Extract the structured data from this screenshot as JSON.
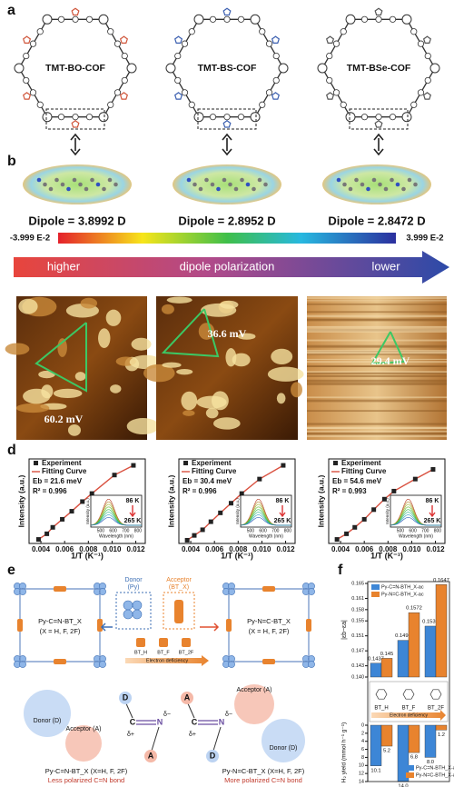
{
  "panel_a": {
    "label": "a",
    "cofs": [
      "TMT-BO-COF",
      "TMT-BS-COF",
      "TMT-BSe-COF"
    ]
  },
  "panel_b": {
    "label": "b",
    "dipoles": [
      "Dipole = 3.8992 D",
      "Dipole = 2.8952 D",
      "Dipole = 2.8472 D"
    ],
    "colorbar": [
      "-3.999 E-2",
      "3.999 E-2"
    ],
    "arrow": [
      "higher",
      "dipole polarization",
      "lower"
    ]
  },
  "panel_c": {
    "label": "c",
    "potentials": [
      "60.2 mV",
      "36.6 mV",
      "29.4 mV"
    ]
  },
  "panel_d": {
    "label": "d",
    "charts": [
      {
        "type": "scatter",
        "y_label": "Intensity (a.u.)",
        "x_label": "1/T (K⁻¹)",
        "legend": [
          "Experiment",
          "Fitting Curve"
        ],
        "eb": "Eb = 21.6 meV",
        "r2": "R² = 0.996",
        "x": [
          0.0038,
          0.0045,
          0.005,
          0.0058,
          0.0066,
          0.0075,
          0.0083,
          0.0102,
          0.0118
        ],
        "values": [
          0.05,
          0.12,
          0.2,
          0.3,
          0.4,
          0.52,
          0.62,
          0.85,
          0.97
        ],
        "xlim": [
          0.003,
          0.0128
        ],
        "ylim": [
          0,
          1.05
        ],
        "xticks": [
          0.004,
          0.006,
          0.008,
          {
            "value": 0.01,
            "label": "0.010"
          },
          0.012
        ],
        "color": "#222222",
        "fit_color": "#d9503f",
        "inset": {
          "x_label": "Wavelength (nm)",
          "y_label": "Intensity (a.u.)",
          "xticks": [
            500,
            600,
            700,
            800
          ],
          "xlim": [
            420,
            830
          ],
          "top": "86 K",
          "bottom": "265 K"
        }
      },
      {
        "type": "scatter",
        "y_label": "Intensity (a.u.)",
        "x_label": "1/T (K⁻¹)",
        "legend": [
          "Experiment",
          "Fitting Curve"
        ],
        "eb": "Eb = 30.4 meV",
        "r2": "R² = 0.996",
        "x": [
          0.0037,
          0.0043,
          0.005,
          0.0057,
          0.0065,
          0.0074,
          0.0083,
          0.0098,
          0.0118
        ],
        "values": [
          0.04,
          0.1,
          0.17,
          0.27,
          0.38,
          0.5,
          0.62,
          0.8,
          0.97
        ],
        "xlim": [
          0.003,
          0.0128
        ],
        "ylim": [
          0,
          1.05
        ],
        "xticks": [
          0.004,
          0.006,
          0.008,
          {
            "value": 0.01,
            "label": "0.010"
          },
          0.012
        ],
        "color": "#222222",
        "fit_color": "#d9503f",
        "inset": {
          "x_label": "Wavelength (nm)",
          "y_label": "Intensity (a.u.)",
          "xticks": [
            500,
            600,
            700,
            800
          ],
          "xlim": [
            420,
            830
          ],
          "top": "86 K",
          "bottom": "265 K"
        }
      },
      {
        "type": "scatter",
        "y_label": "Intensity (a.u.)",
        "x_label": "1/T (K⁻¹)",
        "legend": [
          "Experiment",
          "Fitting Curve"
        ],
        "eb": "Eb = 54.6 meV",
        "r2": "R² = 0.993",
        "x": [
          0.0037,
          0.0045,
          0.0052,
          0.006,
          0.0068,
          0.0077,
          0.0085,
          0.0103,
          0.0118
        ],
        "values": [
          0.05,
          0.12,
          0.2,
          0.3,
          0.42,
          0.55,
          0.65,
          0.8,
          0.92
        ],
        "xlim": [
          0.003,
          0.0128
        ],
        "ylim": [
          0,
          1.05
        ],
        "xticks": [
          0.004,
          0.006,
          0.008,
          {
            "value": 0.01,
            "label": "0.010"
          },
          0.012
        ],
        "color": "#222222",
        "fit_color": "#d9503f",
        "inset": {
          "x_label": "Wavelength (nm)",
          "y_label": "Intensity (a.u.)",
          "xticks": [
            500,
            600,
            700,
            800
          ],
          "xlim": [
            420,
            830
          ],
          "top": "86 K",
          "bottom": "265 K"
        }
      }
    ]
  },
  "panel_e": {
    "label": "e",
    "left": {
      "name": "Py-C=N-BT_X",
      "note": "(X = H, F, 2F)"
    },
    "right": {
      "name": "Py-N=C-BT_X",
      "note": "(X = H, F, 2F)"
    },
    "donor": [
      "Donor",
      "(Py)"
    ],
    "acceptor": [
      "Acceptor",
      "(BT_X)"
    ],
    "units": [
      "BT_H",
      "BT_F",
      "BT_2F"
    ],
    "deficiency": "Electron deficiency",
    "bottom_left": {
      "donor": "Donor (D)",
      "acceptor": "Acceptor (A)",
      "atoms": [
        "D",
        "C",
        "N",
        "A"
      ],
      "charges": [
        "δ+",
        "δ−"
      ],
      "caption": "Py-C=N-BT_X (X=H, F, 2F)",
      "note": "Less polarized C=N bond"
    },
    "bottom_right": {
      "donor": "Donor (D)",
      "acceptor": "Acceptor (A)",
      "atoms": [
        "A",
        "C",
        "N",
        "D"
      ],
      "charges": [
        "δ+",
        "δ−"
      ],
      "caption": "Py-N=C-BT_X (X=H, F, 2F)",
      "note": "More polarized C=N bond"
    }
  },
  "panel_f": {
    "label": "f",
    "deficiency": "Electron deficiency",
    "top": {
      "type": "bar",
      "y_label": "|εb−εa|",
      "categories": [
        "BT_H",
        "BT_F",
        "BT_2F"
      ],
      "series": [
        {
          "name": "Py-C=N-BTH_X-ac",
          "color": "#3d86d6",
          "values": [
            0.1437,
            0.1498,
            0.1536
          ]
        },
        {
          "name": "Py-N=C-BTH_X-ac",
          "color": "#e8832e",
          "values": [
            0.145,
            0.1572,
            0.1647
          ]
        }
      ],
      "ylim": [
        0.14,
        0.165
      ],
      "yticks": [
        {
          "value": 0.14,
          "label": "0.140"
        },
        0.143,
        0.147,
        0.151,
        0.155,
        0.158,
        0.161,
        0.165
      ]
    },
    "bottom": {
      "type": "bar",
      "y_label": "H₂ yield (mmol h⁻¹ g⁻¹)",
      "inverted": true,
      "series": [
        {
          "name": "Py-C=N-BTH_X-ac",
          "color": "#3d86d6",
          "values": [
            10.1,
            14.0,
            8.0
          ],
          "value_labels": [
            "10.1",
            "14.0",
            "8.0"
          ]
        },
        {
          "name": "Py-N=C-BTH_X-ac",
          "color": "#e8832e",
          "values": [
            5.2,
            6.8,
            1.2
          ],
          "value_labels": [
            "5.2",
            "6.8",
            "1.2"
          ]
        }
      ],
      "ylim": [
        0,
        14
      ],
      "yticks": [
        0,
        2,
        4,
        6,
        8,
        10,
        12,
        14
      ]
    }
  }
}
